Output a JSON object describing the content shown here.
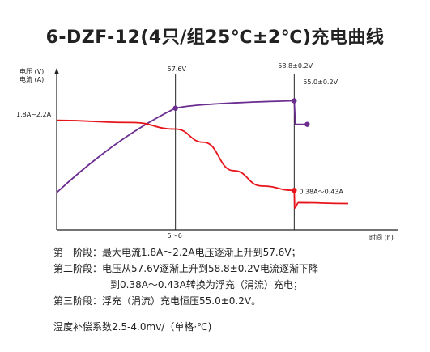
{
  "title": "6-DZF-12(4只/组25℃±2℃)充电曲线",
  "chart_data": {
    "type": "line",
    "ylabel_lines": [
      "电压 (V)",
      "电流 (A)"
    ],
    "xlabel": "时间 (h)",
    "x_tick_label": "5～6",
    "current_label": "1.8A~2.2A",
    "annotations": {
      "v1": "57.6V",
      "v2": "58.8±0.2V",
      "v3": "55.0±0.2V",
      "i_end": "0.38A～0.43A"
    },
    "colors": {
      "voltage": "#6b2d8f",
      "current": "#e8141c",
      "axis": "#222222"
    },
    "series": [
      {
        "key": "voltage",
        "x": [
          0,
          5.5,
          11.0,
          11.05,
          11.5,
          11.7
        ],
        "y": [
          44.0,
          57.6,
          58.8,
          55.0,
          55.0,
          55.0
        ]
      },
      {
        "key": "current",
        "x": [
          0,
          3.5,
          5.5,
          6.8,
          8.2,
          9.5,
          11.0,
          11.02,
          11.2,
          13.5
        ],
        "y": [
          2.0,
          1.95,
          1.8,
          1.5,
          0.85,
          0.5,
          0.4,
          0.0,
          0.12,
          0.1
        ]
      }
    ],
    "markers": {
      "voltage": [
        [
          5.5,
          57.6
        ],
        [
          11.0,
          58.8
        ],
        [
          11.6,
          55.0
        ]
      ],
      "current": [
        [
          11.0,
          0.4
        ]
      ]
    },
    "vlines": [
      5.5,
      11.0
    ],
    "xlim": [
      0,
      13.5
    ],
    "ylim_voltage": [
      38,
      62
    ],
    "ylim_current": [
      -0.5,
      2.9
    ]
  },
  "description": {
    "stage1_head": "第一阶段：",
    "stage1_text": "最大电流1.8A～2.2A电压逐渐上升到57.6V；",
    "stage2_head": "第二阶段：",
    "stage2_text": "电压从57.6V逐渐上升到58.8±0.2V电流逐渐下降",
    "stage2_cont": "到0.38A～0.43A转换为浮充（涓流）充电；",
    "stage3_head": "第三阶段：",
    "stage3_text": "浮充（涓流）充电恒压55.0±0.2V。",
    "note": "温度补偿系数2.5-4.0mv/（单格·℃)"
  }
}
